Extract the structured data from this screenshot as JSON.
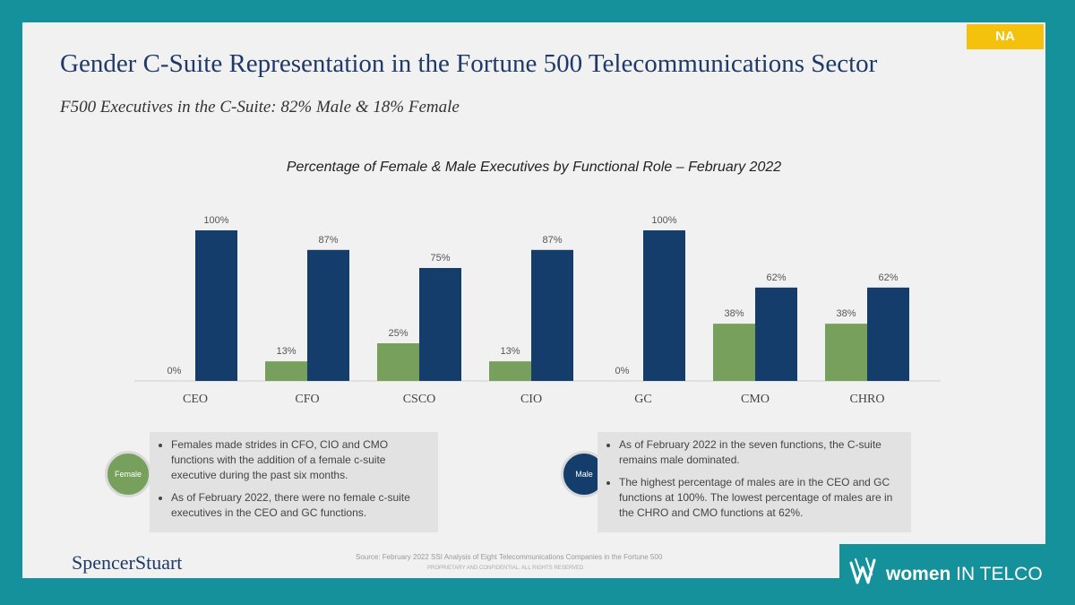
{
  "badge": "NA",
  "title": "Gender C-Suite Representation in the Fortune 500 Telecommunications Sector",
  "subtitle": "F500 Executives in the C-Suite: 82% Male & 18% Female",
  "chart_data": {
    "type": "bar",
    "title": "Percentage of Female & Male Executives by Functional Role – February 2022",
    "categories": [
      "CEO",
      "CFO",
      "CSCO",
      "CIO",
      "GC",
      "CMO",
      "CHRO"
    ],
    "series": [
      {
        "key": "female",
        "values": [
          0,
          13,
          25,
          13,
          0,
          38,
          38
        ],
        "labels": [
          "0%",
          "13%",
          "25%",
          "13%",
          "0%",
          "38%",
          "38%"
        ],
        "color": "#76a05c"
      },
      {
        "key": "male",
        "values": [
          100,
          87,
          75,
          87,
          100,
          62,
          62
        ],
        "labels": [
          "100%",
          "87%",
          "75%",
          "87%",
          "100%",
          "62%",
          "62%"
        ],
        "color": "#153d6b"
      }
    ],
    "ylim": [
      0,
      100
    ]
  },
  "female_panel": {
    "circle_label": "Female",
    "color": "#76a05c",
    "bullets": [
      "Females made strides in CFO, CIO and CMO functions with the addition of a female c-suite executive during the past six months.",
      "As of February 2022, there were no female c-suite executives in the CEO and GC functions."
    ]
  },
  "male_panel": {
    "circle_label": "Male",
    "color": "#153d6b",
    "bullets": [
      "As of February 2022 in the seven functions, the C-suite remains male dominated.",
      "The highest percentage of males are in the CEO and GC functions at 100%.  The lowest percentage of males are in the CHRO and CMO functions at 62%."
    ]
  },
  "footer": {
    "logo": "SpencerStuart",
    "source": "Source:  February 2022 SSI Analysis of Eight Telecommunications Companies in the Fortune 500",
    "confidential": "PROPRIETARY AND CONFIDENTIAL. ALL RIGHTS RESERVED"
  },
  "brand": {
    "strong": "women",
    "rest": " IN TELCO"
  }
}
